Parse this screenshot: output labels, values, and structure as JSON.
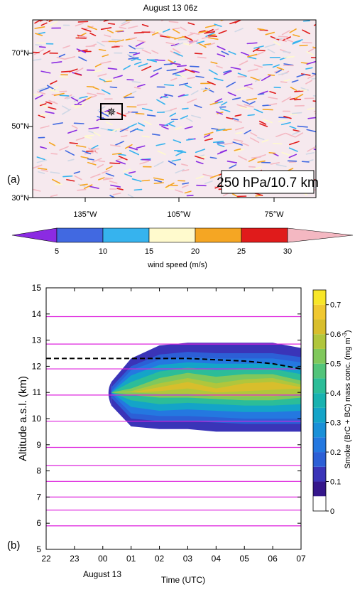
{
  "panel_a": {
    "title": "August 13 06z",
    "panel_label": "(a)",
    "level_label": "250 hPa/10.7 km",
    "lat_ticks": [
      "70°N",
      "50°N",
      "30°N"
    ],
    "lon_ticks": [
      "135°W",
      "105°W",
      "75°W"
    ],
    "colorbar": {
      "label": "wind speed (m/s)",
      "tick_labels": [
        "5",
        "10",
        "15",
        "20",
        "25",
        "30"
      ],
      "bins": [
        {
          "color": "#8b2be2"
        },
        {
          "color": "#4169e1"
        },
        {
          "color": "#36b3ee"
        },
        {
          "color": "#fffacd"
        },
        {
          "color": "#f5a623"
        },
        {
          "color": "#e01b1b"
        },
        {
          "color": "#f4b8c2"
        }
      ]
    },
    "pattern_colors": [
      "#f4b8c2",
      "#f4b8c2",
      "#fffacd",
      "#36b3ee",
      "#4169e1",
      "#8b2be2",
      "#f5a623",
      "#e01b1b",
      "#cfd8e6"
    ]
  },
  "chart_data": {
    "type": "heatmap",
    "panel_label": "(b)",
    "xlabel": "Time (UTC)",
    "ylabel": "Altitude a.s.l. (km)",
    "x_tick_labels": [
      "22",
      "23",
      "00",
      "01",
      "02",
      "03",
      "04",
      "05",
      "06",
      "07"
    ],
    "x_sublabel": "August 13",
    "xlim": [
      -2,
      7
    ],
    "ylim": [
      5,
      15
    ],
    "y_ticks": [
      5,
      6,
      7,
      8,
      9,
      10,
      11,
      12,
      13,
      14,
      15
    ],
    "model_levels_km": [
      5.9,
      6.5,
      7.0,
      7.6,
      8.2,
      8.9,
      9.9,
      10.9,
      11.9,
      12.85,
      13.9
    ],
    "tropopause_dashed": {
      "x": [
        -2,
        -1,
        0,
        1,
        2,
        3,
        4,
        5,
        6,
        7
      ],
      "y": [
        12.3,
        12.3,
        12.3,
        12.3,
        12.3,
        12.3,
        12.25,
        12.2,
        12.1,
        11.9
      ]
    },
    "smoke_plume": {
      "x": [
        0.3,
        1,
        2,
        3,
        4,
        5,
        6,
        7
      ],
      "bottom_km": [
        10.5,
        9.7,
        9.6,
        9.6,
        9.5,
        9.5,
        9.5,
        9.5
      ],
      "top_km": [
        11.4,
        12.3,
        12.8,
        12.9,
        12.9,
        12.9,
        12.9,
        12.7
      ],
      "layers": [
        {
          "value": 0.1,
          "b": [
            10.5,
            9.7,
            9.6,
            9.6,
            9.5,
            9.5,
            9.5,
            9.5
          ],
          "t": [
            11.4,
            12.3,
            12.8,
            12.9,
            12.9,
            12.9,
            12.9,
            12.7
          ]
        },
        {
          "value": 0.15,
          "b": [
            10.8,
            10.0,
            9.9,
            9.9,
            9.85,
            9.8,
            9.8,
            9.8
          ],
          "t": [
            11.2,
            12.0,
            12.45,
            12.55,
            12.5,
            12.5,
            12.5,
            12.35
          ]
        },
        {
          "value": 0.2,
          "b": [
            10.95,
            10.2,
            10.1,
            10.1,
            10.05,
            10.0,
            10.0,
            10.0
          ],
          "t": [
            11.05,
            11.85,
            12.25,
            12.35,
            12.3,
            12.3,
            12.3,
            12.15
          ]
        },
        {
          "value": 0.3,
          "b": [
            11.0,
            10.45,
            10.3,
            10.35,
            10.3,
            10.25,
            10.25,
            10.3
          ],
          "t": [
            11.0,
            11.65,
            12.05,
            12.15,
            12.1,
            12.1,
            12.1,
            11.95
          ]
        },
        {
          "value": 0.4,
          "b": [
            11.0,
            10.7,
            10.55,
            10.6,
            10.55,
            10.5,
            10.5,
            10.55
          ],
          "t": [
            11.0,
            11.4,
            11.8,
            11.95,
            11.85,
            11.9,
            11.9,
            11.7
          ]
        },
        {
          "value": 0.5,
          "b": [
            11.0,
            10.9,
            10.8,
            10.8,
            10.75,
            10.7,
            10.7,
            10.8
          ],
          "t": [
            11.0,
            11.15,
            11.55,
            11.75,
            11.6,
            11.7,
            11.7,
            11.45
          ]
        },
        {
          "value": 0.55,
          "b": [
            11.0,
            11.0,
            10.95,
            10.95,
            10.85,
            10.85,
            10.85,
            10.95
          ],
          "t": [
            11.0,
            11.05,
            11.35,
            11.55,
            11.35,
            11.5,
            11.55,
            11.3
          ]
        },
        {
          "value": 0.6,
          "b": [
            11.0,
            11.0,
            11.05,
            11.15,
            11.0,
            11.05,
            11.1,
            11.15
          ],
          "t": [
            11.0,
            11.0,
            11.2,
            11.4,
            11.15,
            11.35,
            11.4,
            11.2
          ]
        }
      ]
    },
    "colorbar": {
      "label": "Smoke (BrC + BC) mass conc. (mg m",
      "label_exponent": "-3",
      "label_close": ")",
      "tick_values": [
        0,
        0.1,
        0.2,
        0.3,
        0.4,
        0.5,
        0.6,
        0.7
      ],
      "tick_labels": [
        "0",
        "0.1",
        "0.2",
        "0.3",
        "0.4",
        "0.5",
        "0.6",
        "0.7"
      ],
      "vmin": 0,
      "vmax": 0.75,
      "bins": [
        {
          "from": 0,
          "to": 0.05,
          "color": "#ffffff"
        },
        {
          "from": 0.05,
          "to": 0.1,
          "color": "#35178b"
        },
        {
          "from": 0.1,
          "to": 0.15,
          "color": "#3a34b8"
        },
        {
          "from": 0.15,
          "to": 0.2,
          "color": "#2c5fd6"
        },
        {
          "from": 0.2,
          "to": 0.25,
          "color": "#2478e0"
        },
        {
          "from": 0.25,
          "to": 0.3,
          "color": "#1a90d8"
        },
        {
          "from": 0.3,
          "to": 0.35,
          "color": "#14a4c8"
        },
        {
          "from": 0.35,
          "to": 0.4,
          "color": "#18b2b0"
        },
        {
          "from": 0.4,
          "to": 0.45,
          "color": "#2cbd98"
        },
        {
          "from": 0.45,
          "to": 0.5,
          "color": "#52c47a"
        },
        {
          "from": 0.5,
          "to": 0.55,
          "color": "#80c85c"
        },
        {
          "from": 0.55,
          "to": 0.6,
          "color": "#b0c63c"
        },
        {
          "from": 0.6,
          "to": 0.65,
          "color": "#d8be2c"
        },
        {
          "from": 0.65,
          "to": 0.7,
          "color": "#f0c830"
        },
        {
          "from": 0.7,
          "to": 0.75,
          "color": "#f8e628"
        }
      ]
    },
    "colors": {
      "levels": "#dd22dd",
      "tropopause": "#000000"
    }
  }
}
